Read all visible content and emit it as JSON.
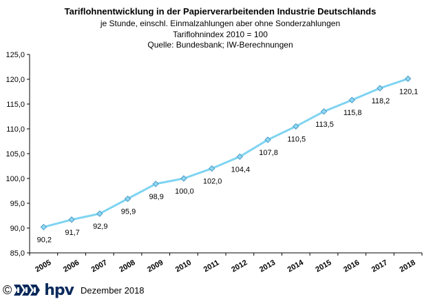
{
  "chart_data": {
    "type": "line",
    "title": "Tariflohnentwicklung in der Papierverarbeitenden Industrie Deutschlands",
    "subtitles": [
      "je Stunde,  einschl. Einmalzahlungen  aber ohne Sonderzahlungen",
      "Tariflohnindex  2010  = 100",
      "Quelle: Bundesbank; IW-Berechnungen"
    ],
    "x": [
      "2005",
      "2006",
      "2007",
      "2008",
      "2009",
      "2010",
      "2011",
      "2012",
      "2013",
      "2014",
      "2015",
      "2016",
      "2017",
      "2018"
    ],
    "series": [
      {
        "values": [
          90.2,
          91.7,
          92.9,
          95.9,
          98.9,
          100.0,
          102.0,
          104.4,
          107.8,
          110.5,
          113.5,
          115.8,
          118.2,
          120.1
        ]
      }
    ],
    "data_labels": [
      "90,2",
      "91,7",
      "92,9",
      "95,9",
      "98,9",
      "100,0",
      "102,0",
      "104,4",
      "107,8",
      "110,5",
      "113,5",
      "115,8",
      "118,2",
      "120,1"
    ],
    "yticks": [
      "85,0",
      "90,0",
      "95,0",
      "100,0",
      "105,0",
      "110,0",
      "115,0",
      "120,0",
      "125,0"
    ],
    "ylim": [
      85,
      125
    ],
    "grid": false,
    "line_color": "#7fd4f2",
    "marker_color": "#8fd8f5",
    "marker_edge": "#4a9ac4"
  },
  "footer": {
    "copyright": "©",
    "brand": "hpv",
    "date": "Dezember 2018",
    "logo_icon": "hpv-logo-icon"
  }
}
